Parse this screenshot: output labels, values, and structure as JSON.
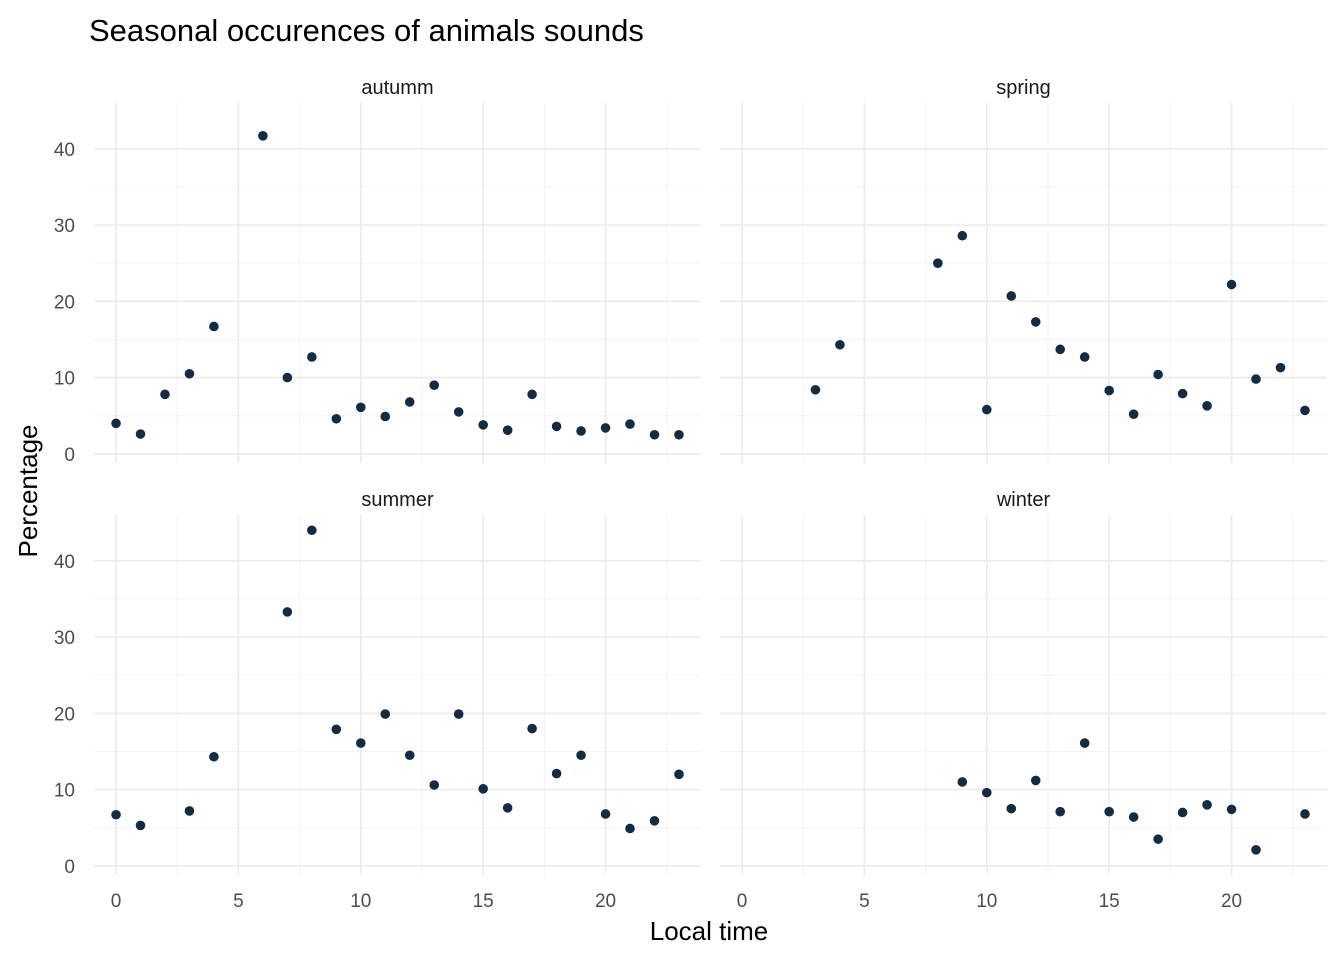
{
  "chart_data": {
    "type": "scatter",
    "title": "Seasonal occurences of animals sounds",
    "xlabel": "Local time",
    "ylabel": "Percentage",
    "xlim": [
      -0.9,
      23.9
    ],
    "ylim": [
      -1.2,
      46
    ],
    "x_ticks": [
      0,
      5,
      10,
      15,
      20
    ],
    "y_ticks": [
      0,
      10,
      20,
      30,
      40
    ],
    "grid": true,
    "legend": "none",
    "point_color": "#132b43",
    "panels": [
      {
        "label": "autumm",
        "points": [
          [
            0,
            4.0
          ],
          [
            1,
            2.6
          ],
          [
            2,
            7.8
          ],
          [
            3,
            10.5
          ],
          [
            4,
            16.7
          ],
          [
            6,
            41.7
          ],
          [
            7,
            10.0
          ],
          [
            8,
            12.7
          ],
          [
            9,
            4.6
          ],
          [
            10,
            6.1
          ],
          [
            11,
            4.9
          ],
          [
            12,
            6.8
          ],
          [
            13,
            9.0
          ],
          [
            14,
            5.5
          ],
          [
            15,
            3.8
          ],
          [
            16,
            3.1
          ],
          [
            17,
            7.8
          ],
          [
            18,
            3.6
          ],
          [
            19,
            3.0
          ],
          [
            20,
            3.4
          ],
          [
            21,
            3.9
          ],
          [
            22,
            2.5
          ],
          [
            23,
            2.5
          ]
        ]
      },
      {
        "label": "spring",
        "points": [
          [
            3,
            8.4
          ],
          [
            4,
            14.3
          ],
          [
            8,
            25.0
          ],
          [
            9,
            28.6
          ],
          [
            10,
            5.8
          ],
          [
            11,
            20.7
          ],
          [
            12,
            17.3
          ],
          [
            13,
            13.7
          ],
          [
            14,
            12.7
          ],
          [
            15,
            8.3
          ],
          [
            16,
            5.2
          ],
          [
            17,
            10.4
          ],
          [
            18,
            7.9
          ],
          [
            19,
            6.3
          ],
          [
            20,
            22.2
          ],
          [
            21,
            9.8
          ],
          [
            22,
            11.3
          ],
          [
            23,
            5.7
          ]
        ]
      },
      {
        "label": "summer",
        "points": [
          [
            0,
            6.7
          ],
          [
            1,
            5.3
          ],
          [
            3,
            7.2
          ],
          [
            4,
            14.3
          ],
          [
            7,
            33.3
          ],
          [
            8,
            44.0
          ],
          [
            9,
            17.9
          ],
          [
            10,
            16.1
          ],
          [
            11,
            19.9
          ],
          [
            12,
            14.5
          ],
          [
            13,
            10.6
          ],
          [
            14,
            19.9
          ],
          [
            15,
            10.1
          ],
          [
            16,
            7.6
          ],
          [
            17,
            18.0
          ],
          [
            18,
            12.1
          ],
          [
            19,
            14.5
          ],
          [
            20,
            6.8
          ],
          [
            21,
            4.9
          ],
          [
            22,
            5.9
          ],
          [
            23,
            12.0
          ]
        ]
      },
      {
        "label": "winter",
        "points": [
          [
            9,
            11.0
          ],
          [
            10,
            9.6
          ],
          [
            11,
            7.5
          ],
          [
            12,
            11.2
          ],
          [
            13,
            7.1
          ],
          [
            14,
            16.1
          ],
          [
            15,
            7.1
          ],
          [
            16,
            6.4
          ],
          [
            17,
            3.5
          ],
          [
            18,
            7.0
          ],
          [
            19,
            8.0
          ],
          [
            20,
            7.4
          ],
          [
            21,
            2.1
          ],
          [
            23,
            6.8
          ]
        ]
      }
    ]
  }
}
